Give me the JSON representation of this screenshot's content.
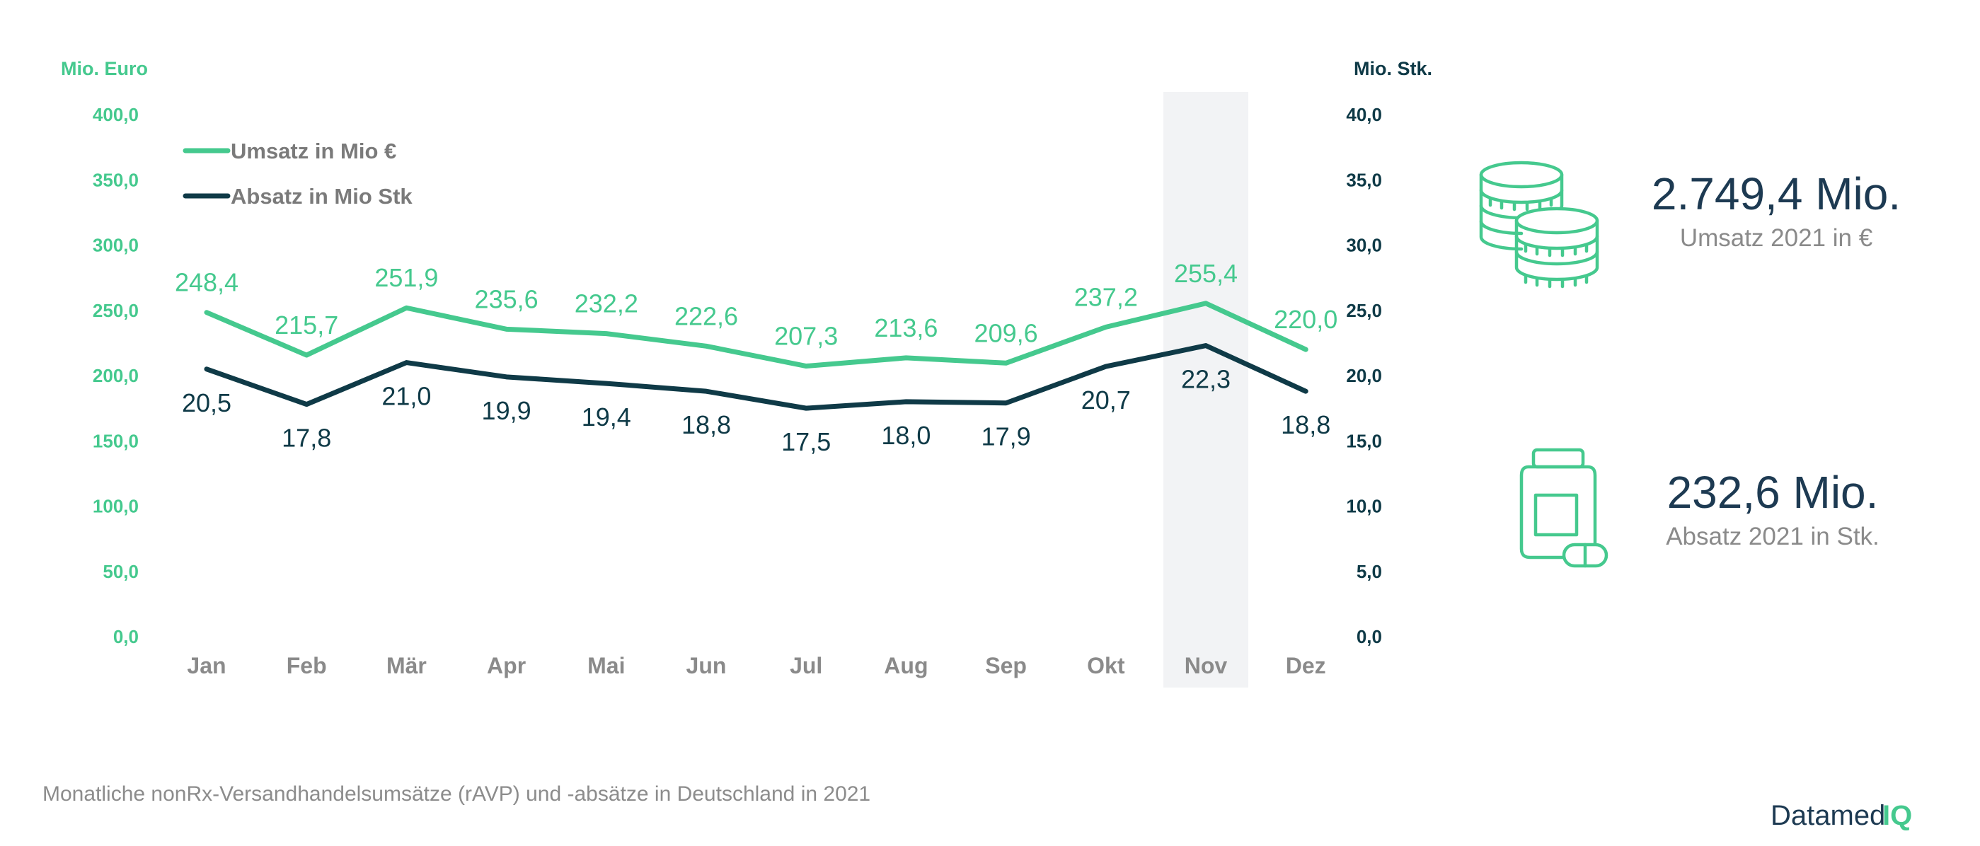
{
  "colors": {
    "umsatz": "#45c98e",
    "absatz": "#0f3a47",
    "highlight": "#f2f3f5",
    "muted": "#8a8a8a",
    "navy": "#1d3a52"
  },
  "chart_data": {
    "type": "line",
    "categories": [
      "Jan",
      "Feb",
      "Mär",
      "Apr",
      "Mai",
      "Jun",
      "Jul",
      "Aug",
      "Sep",
      "Okt",
      "Nov",
      "Dez"
    ],
    "highlight_category": "Nov",
    "legend_position": "top-left",
    "grid": false,
    "left_axis": {
      "label": "Mio. Euro",
      "range": [
        0,
        400
      ],
      "ticks": [
        "400,0",
        "350,0",
        "300,0",
        "250,0",
        "200,0",
        "150,0",
        "100,0",
        "50,0",
        "0,0"
      ]
    },
    "right_axis": {
      "label": "Mio. Stk.",
      "range": [
        0,
        40
      ],
      "ticks": [
        "40,0",
        "35,0",
        "30,0",
        "25,0",
        "20,0",
        "15,0",
        "10,0",
        "5,0",
        "0,0"
      ]
    },
    "series": [
      {
        "name": "Umsatz in Mio €",
        "axis": "left",
        "values": [
          248.4,
          215.7,
          251.9,
          235.6,
          232.2,
          222.6,
          207.3,
          213.6,
          209.6,
          237.2,
          255.4,
          220.0
        ],
        "labels": [
          "248,4",
          "215,7",
          "251,9",
          "235,6",
          "232,2",
          "222,6",
          "207,3",
          "213,6",
          "209,6",
          "237,2",
          "255,4",
          "220,0"
        ]
      },
      {
        "name": "Absatz in Mio Stk",
        "axis": "right",
        "values": [
          20.5,
          17.8,
          21.0,
          19.9,
          19.4,
          18.8,
          17.5,
          18.0,
          17.9,
          20.7,
          22.3,
          18.8
        ],
        "labels": [
          "20,5",
          "17,8",
          "21,0",
          "19,9",
          "19,4",
          "18,8",
          "17,5",
          "18,0",
          "17,9",
          "20,7",
          "22,3",
          "18,8"
        ]
      }
    ]
  },
  "kpis": [
    {
      "value": "2.749,4 Mio.",
      "label": "Umsatz 2021 in €",
      "icon": "coins-icon"
    },
    {
      "value": "232,6 Mio.",
      "label": "Absatz 2021 in Stk.",
      "icon": "medicine-bottle-icon"
    }
  ],
  "footnote": "Monatliche nonRx-Versandhandelsumsätze (rAVP) und -absätze in Deutschland in 2021",
  "brand": {
    "text": "Datamed",
    "suffix": "IQ"
  }
}
